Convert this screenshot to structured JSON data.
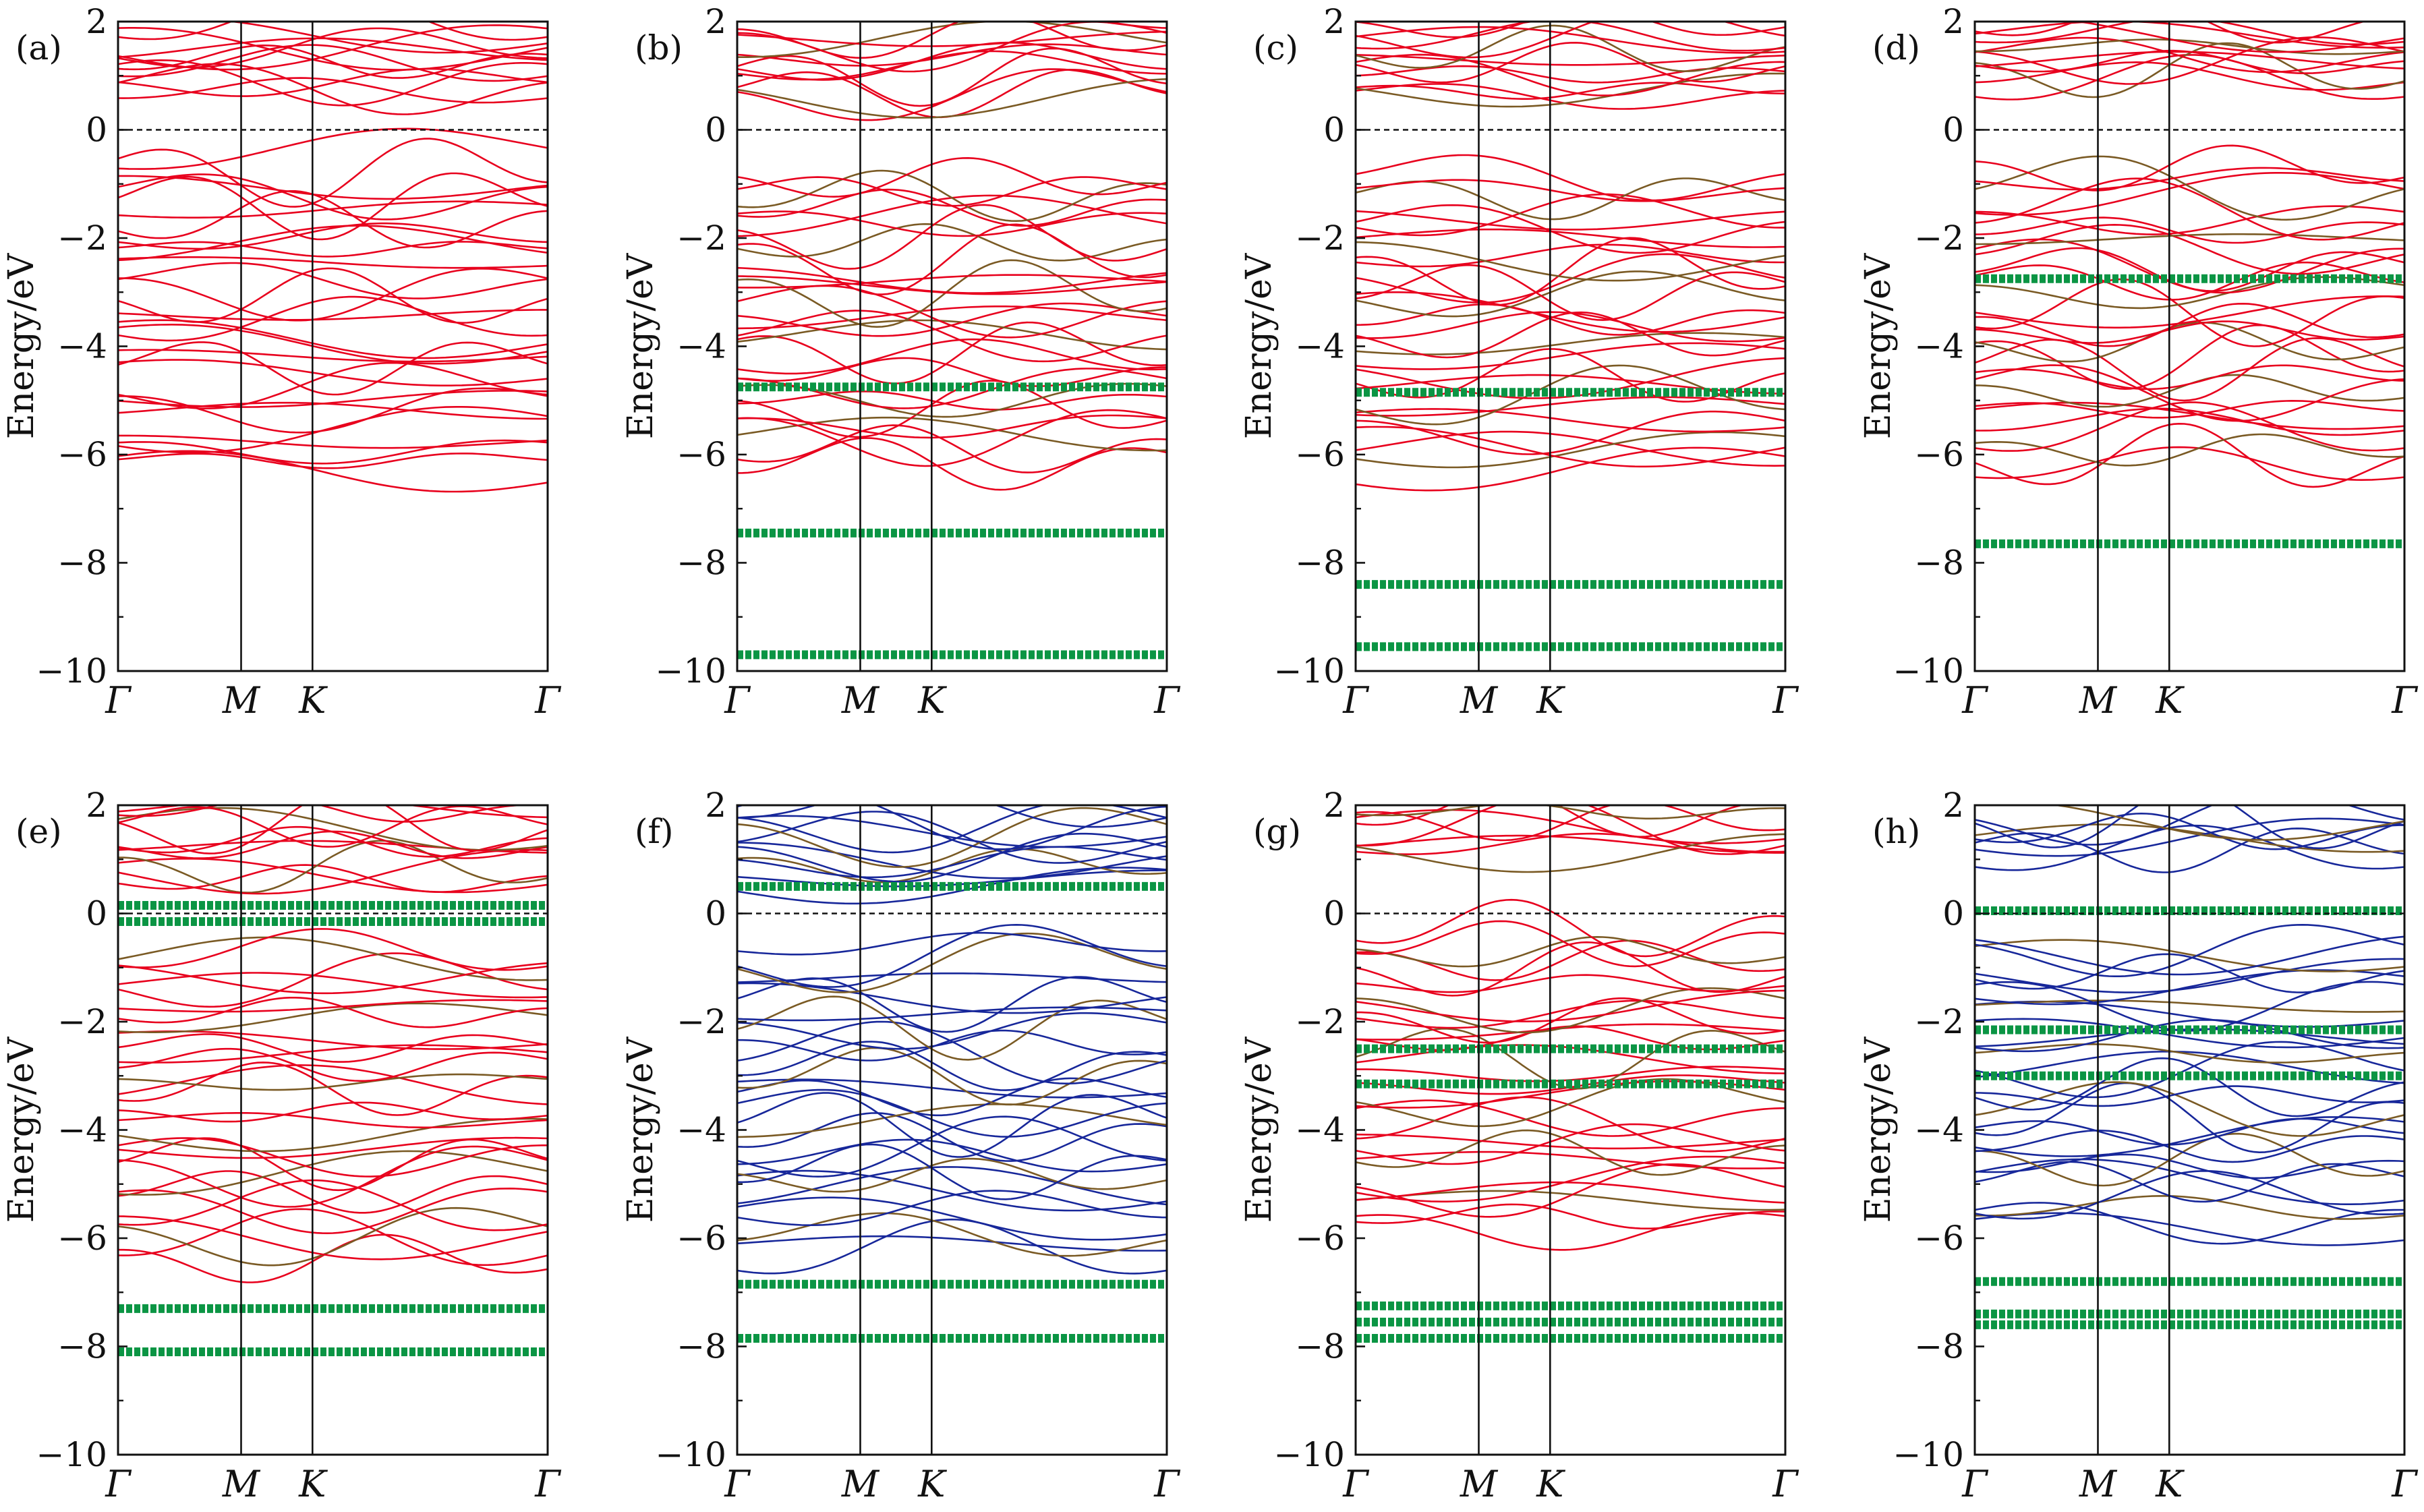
{
  "chart_data": {
    "type": "line",
    "figure_description_free": true,
    "shared": {
      "ylabel": "Energy/eV",
      "ylim": [
        -10,
        2
      ],
      "yticks": [
        2,
        0,
        -2,
        -4,
        -6,
        -8,
        -10
      ],
      "ytick_labels": [
        "2",
        "0",
        "−2",
        "−4",
        "−6",
        "−8",
        "−10"
      ],
      "xtick_labels": [
        "Γ",
        "M",
        "K",
        "Γ"
      ],
      "xtick_positions": [
        0,
        0.2865,
        0.4526,
        1.0
      ],
      "fermi_level": 0,
      "colors": {
        "red": "#e8001d",
        "blue": "#17279a",
        "green": "#0b9544",
        "olive": "#7a5a24"
      }
    },
    "panels": [
      {
        "label": "(a)",
        "main_band_color": "#e8001d",
        "band_groups": [
          [
            0.6,
            2.0,
            12
          ],
          [
            -6.4,
            -0.4,
            30
          ]
        ],
        "flat_bands": []
      },
      {
        "label": "(b)",
        "main_band_color": "#e8001d",
        "band_groups": [
          [
            0.6,
            2.0,
            12
          ],
          [
            -6.2,
            -0.8,
            30
          ]
        ],
        "flat_bands": [
          -4.75,
          -7.45,
          -9.7
        ]
      },
      {
        "label": "(c)",
        "main_band_color": "#e8001d",
        "band_groups": [
          [
            0.6,
            2.0,
            12
          ],
          [
            -6.3,
            -0.8,
            30
          ]
        ],
        "flat_bands": [
          -4.85,
          -8.4,
          -9.55
        ]
      },
      {
        "label": "(d)",
        "main_band_color": "#e8001d",
        "band_groups": [
          [
            0.8,
            2.0,
            12
          ],
          [
            -6.3,
            -0.6,
            30
          ]
        ],
        "flat_bands": [
          -2.75,
          -7.65
        ]
      },
      {
        "label": "(e)",
        "main_band_color": "#e8001d",
        "band_groups": [
          [
            0.6,
            2.0,
            12
          ],
          [
            -6.4,
            -0.6,
            30
          ]
        ],
        "flat_bands": [
          0.15,
          -0.15,
          -7.3,
          -8.1
        ]
      },
      {
        "label": "(f)",
        "main_band_color": "#17279a",
        "band_groups": [
          [
            0.6,
            2.0,
            12
          ],
          [
            -6.4,
            -0.5,
            30
          ]
        ],
        "flat_bands": [
          0.5,
          -6.85,
          -7.85
        ]
      },
      {
        "label": "(g)",
        "main_band_color": "#e8001d",
        "band_groups": [
          [
            1.1,
            2.0,
            8
          ],
          [
            -5.9,
            -0.2,
            30
          ]
        ],
        "flat_bands": [
          -2.5,
          -3.15,
          -7.25,
          -7.55,
          -7.85
        ]
      },
      {
        "label": "(h)",
        "main_band_color": "#17279a",
        "band_groups": [
          [
            1.0,
            2.0,
            8
          ],
          [
            -5.9,
            -0.3,
            30
          ]
        ],
        "flat_bands": [
          0.05,
          -2.15,
          -3.0,
          -6.8,
          -7.4,
          -7.6
        ]
      }
    ]
  }
}
